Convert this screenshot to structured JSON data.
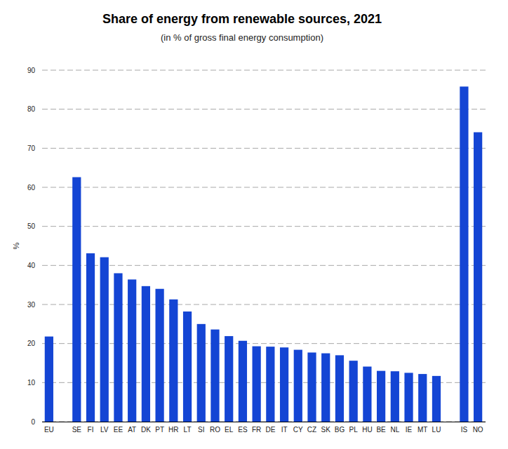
{
  "chart_data": {
    "type": "bar",
    "title": "Share of energy from renewable sources, 2021",
    "subtitle": "(in % of gross final energy consumption)",
    "y_label": "%",
    "categories": [
      "EU",
      null,
      "SE",
      "FI",
      "LV",
      "EE",
      "AT",
      "DK",
      "PT",
      "HR",
      "LT",
      "SI",
      "RO",
      "EL",
      "ES",
      "FR",
      "DE",
      "IT",
      "CY",
      "CZ",
      "SK",
      "BG",
      "PL",
      "HU",
      "BE",
      "NL",
      "IE",
      "MT",
      "LU",
      null,
      "IS",
      "NO"
    ],
    "values": [
      21.8,
      null,
      62.6,
      43.1,
      42.1,
      38.0,
      36.4,
      34.7,
      34.0,
      31.3,
      28.2,
      25.0,
      23.6,
      21.9,
      20.7,
      19.3,
      19.2,
      19.0,
      18.4,
      17.7,
      17.5,
      17.0,
      15.6,
      14.1,
      13.0,
      12.9,
      12.5,
      12.2,
      11.7,
      null,
      85.8,
      74.1
    ],
    "color": "#1445d4",
    "ylim": [
      0,
      90
    ],
    "yticks": [
      0,
      10,
      20,
      30,
      40,
      50,
      60,
      70,
      80,
      90
    ],
    "grid": true
  }
}
